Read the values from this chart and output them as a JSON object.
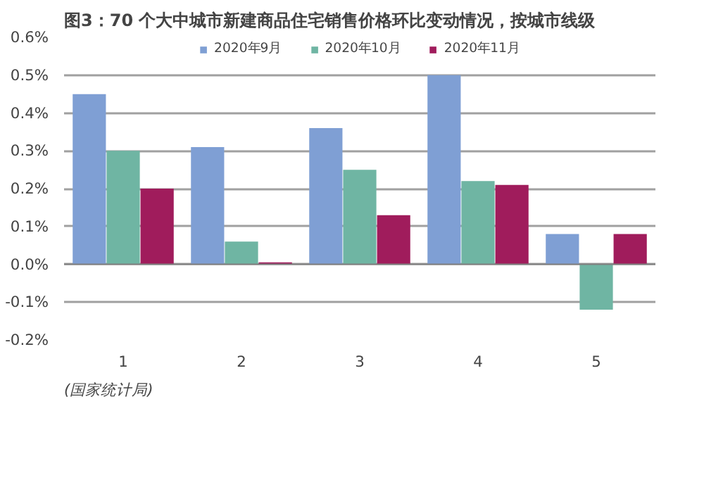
{
  "chart_data": {
    "type": "bar",
    "title": "图3：70 个大中城市新建商品住宅销售价格环比变动情况，按城市线级",
    "categories": [
      "1",
      "2",
      "3",
      "4",
      "5"
    ],
    "series": [
      {
        "name": "2020年9月",
        "color": "#7f9fd4",
        "values": [
          0.45,
          0.31,
          0.36,
          0.5,
          0.08
        ]
      },
      {
        "name": "2020年10月",
        "color": "#6fb5a3",
        "values": [
          0.3,
          0.06,
          0.25,
          0.22,
          -0.12
        ]
      },
      {
        "name": "2020年11月",
        "color": "#a01c5c",
        "values": [
          0.2,
          0.005,
          0.13,
          0.21,
          0.08
        ]
      }
    ],
    "ylim": [
      -0.2,
      0.6
    ],
    "yticks": [
      {
        "value": -0.2,
        "label": "-0.2%"
      },
      {
        "value": -0.1,
        "label": "-0.1%"
      },
      {
        "value": 0,
        "label": "0.0%"
      },
      {
        "value": 0.1,
        "label": "0.1%"
      },
      {
        "value": 0.2,
        "label": "0.2%"
      },
      {
        "value": 0.3,
        "label": "0.3%"
      },
      {
        "value": 0.4,
        "label": "0.4%"
      },
      {
        "value": 0.5,
        "label": "0.5%"
      },
      {
        "value": 0.6,
        "label": "0.6%"
      }
    ],
    "grid": "y",
    "legend": "top",
    "annotations": [
      "(国家统计局)"
    ]
  }
}
